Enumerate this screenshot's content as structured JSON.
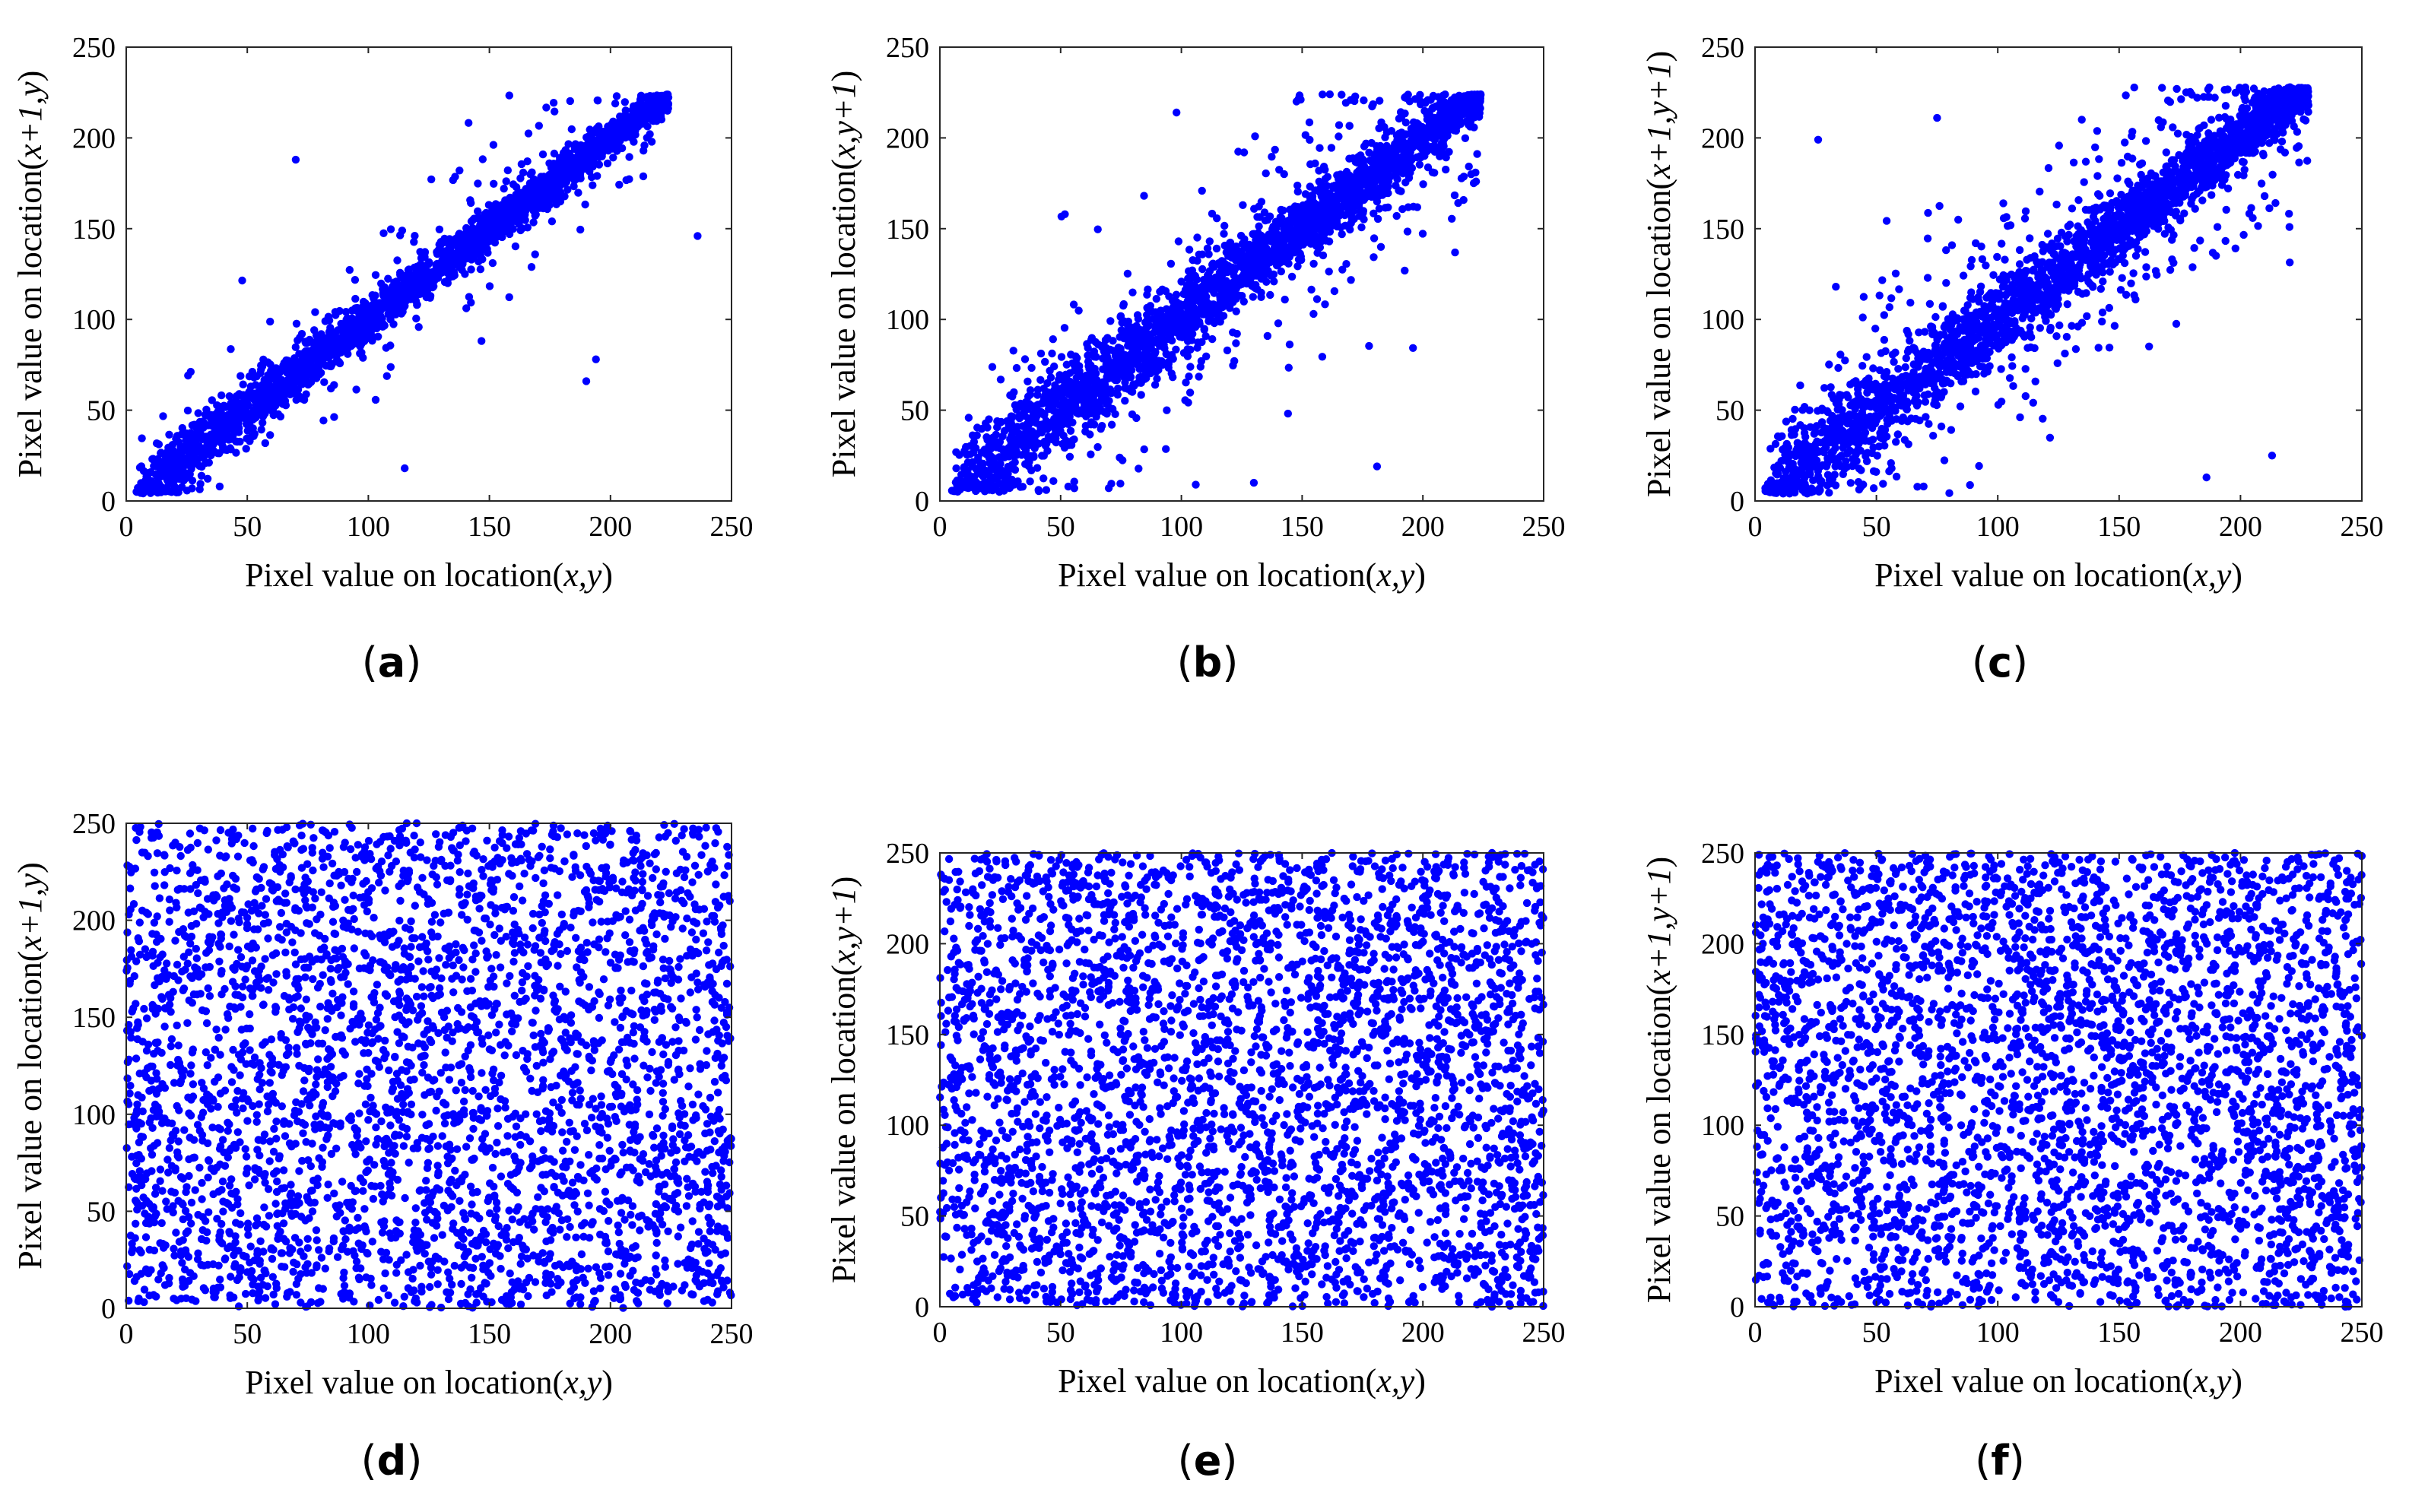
{
  "figure": {
    "description_free": true,
    "point_color": "#0000ff"
  },
  "chart_data": [
    {
      "id": "a",
      "type": "scatter",
      "caption_letter": "a",
      "xlabel_prefix": "Pixel value on location(",
      "xlabel_vars": "x,y",
      "xlabel_suffix": ")",
      "ylabel_prefix": "Pixel value on location(",
      "ylabel_vars": "x+1,y",
      "ylabel_suffix": ")",
      "xlim": [
        0,
        250
      ],
      "ylim": [
        0,
        250
      ],
      "xticks": [
        "0",
        "50",
        "100",
        "150",
        "200",
        "250"
      ],
      "yticks": [
        "0",
        "50",
        "100",
        "150",
        "200",
        "250"
      ],
      "pattern": "correlated",
      "noise": 7,
      "outlier_frac": 0.08,
      "n_points": 2600,
      "seed": 11,
      "value_range": [
        4,
        224
      ],
      "notable_points": [
        [
          236,
          146
        ],
        [
          70,
          188
        ],
        [
          190,
          66
        ],
        [
          194,
          78
        ],
        [
          115,
          18
        ]
      ]
    },
    {
      "id": "b",
      "type": "scatter",
      "caption_letter": "b",
      "xlabel_prefix": "Pixel value on location(",
      "xlabel_vars": "x,y",
      "xlabel_suffix": ")",
      "ylabel_prefix": "Pixel value on location(",
      "ylabel_vars": "x,y+1",
      "ylabel_suffix": ")",
      "xlim": [
        0,
        250
      ],
      "ylim": [
        0,
        250
      ],
      "xticks": [
        "0",
        "50",
        "100",
        "150",
        "200",
        "250"
      ],
      "yticks": [
        "0",
        "50",
        "100",
        "150",
        "200",
        "250"
      ],
      "pattern": "correlated",
      "noise": 11,
      "outlier_frac": 0.14,
      "n_points": 2600,
      "seed": 23,
      "value_range": [
        5,
        224
      ],
      "notable_points": [
        [
          98,
          214
        ],
        [
          222,
          176
        ],
        [
          220,
          180
        ],
        [
          181,
          19
        ],
        [
          130,
          10
        ]
      ]
    },
    {
      "id": "c",
      "type": "scatter",
      "caption_letter": "c",
      "xlabel_prefix": "Pixel value on location(",
      "xlabel_vars": "x,y",
      "xlabel_suffix": ")",
      "ylabel_prefix": "Pixel value on location(",
      "ylabel_vars": "x+1,y+1",
      "ylabel_suffix": ")",
      "xlim": [
        0,
        250
      ],
      "ylim": [
        0,
        250
      ],
      "xticks": [
        "0",
        "50",
        "100",
        "150",
        "200",
        "250"
      ],
      "yticks": [
        "0",
        "50",
        "100",
        "150",
        "200",
        "250"
      ],
      "pattern": "correlated",
      "noise": 12,
      "outlier_frac": 0.16,
      "n_points": 2600,
      "seed": 37,
      "value_range": [
        4,
        228
      ],
      "notable_points": [
        [
          26,
          199
        ],
        [
          228,
          218
        ],
        [
          75,
          211
        ],
        [
          213,
          25
        ],
        [
          186,
          13
        ]
      ]
    },
    {
      "id": "d",
      "type": "scatter",
      "caption_letter": "d",
      "xlabel_prefix": "Pixel value on location(",
      "xlabel_vars": "x,y",
      "xlabel_suffix": ")",
      "ylabel_prefix": "Pixel value on location(",
      "ylabel_vars": "x+1,y",
      "ylabel_suffix": ")",
      "xlim": [
        0,
        250
      ],
      "ylim": [
        0,
        250
      ],
      "xticks": [
        "0",
        "50",
        "100",
        "150",
        "200",
        "250"
      ],
      "yticks": [
        "0",
        "50",
        "100",
        "150",
        "200",
        "250"
      ],
      "pattern": "uniform",
      "n_points": 3400,
      "seed": 53,
      "value_range": [
        0,
        250
      ]
    },
    {
      "id": "e",
      "type": "scatter",
      "caption_letter": "e",
      "xlabel_prefix": "Pixel value on location(",
      "xlabel_vars": "x,y",
      "xlabel_suffix": ")",
      "ylabel_prefix": "Pixel value on location(",
      "ylabel_vars": "x,y+1",
      "ylabel_suffix": ")",
      "xlim": [
        0,
        250
      ],
      "ylim": [
        0,
        250
      ],
      "xticks": [
        "0",
        "50",
        "100",
        "150",
        "200",
        "250"
      ],
      "yticks": [
        "0",
        "50",
        "100",
        "150",
        "200",
        "250"
      ],
      "pattern": "uniform",
      "n_points": 3400,
      "seed": 71,
      "value_range": [
        0,
        250
      ]
    },
    {
      "id": "f",
      "type": "scatter",
      "caption_letter": "f",
      "xlabel_prefix": "Pixel value on location(",
      "xlabel_vars": "x,y",
      "xlabel_suffix": ")",
      "ylabel_prefix": "Pixel value on location(",
      "ylabel_vars": "x+1,y+1",
      "ylabel_suffix": ")",
      "xlim": [
        0,
        250
      ],
      "ylim": [
        0,
        250
      ],
      "xticks": [
        "0",
        "50",
        "100",
        "150",
        "200",
        "250"
      ],
      "yticks": [
        "0",
        "50",
        "100",
        "150",
        "200",
        "250"
      ],
      "pattern": "uniform",
      "n_points": 3400,
      "seed": 89,
      "value_range": [
        0,
        250
      ]
    }
  ]
}
